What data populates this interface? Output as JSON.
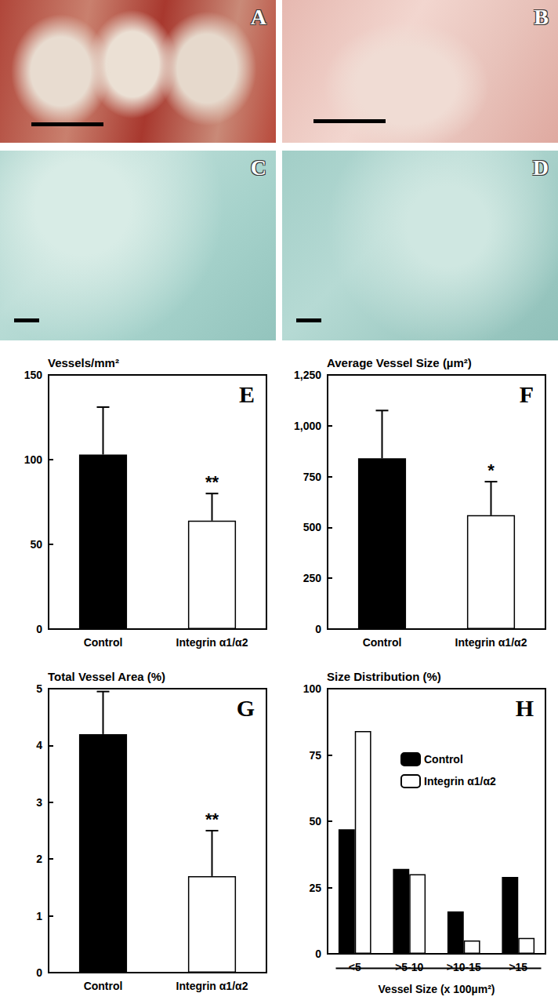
{
  "image_panels": [
    {
      "label": "A"
    },
    {
      "label": "B"
    },
    {
      "label": "C"
    },
    {
      "label": "D"
    }
  ],
  "chart_data": [
    {
      "type": "bar",
      "panel": "E",
      "title": "Vessels/mm²",
      "categories": [
        "Control",
        "Integrin α1/α2"
      ],
      "values": [
        103,
        64
      ],
      "errors": [
        28,
        16
      ],
      "significance": [
        null,
        "**"
      ],
      "colors": [
        "#000000",
        "#ffffff"
      ],
      "ylim": [
        0,
        150
      ],
      "yticks": [
        0,
        50,
        100,
        150
      ],
      "grid": false
    },
    {
      "type": "bar",
      "panel": "F",
      "title": "Average Vessel Size (µm²)",
      "categories": [
        "Control",
        "Integrin α1/α2"
      ],
      "values": [
        840,
        560
      ],
      "errors": [
        235,
        165
      ],
      "significance": [
        null,
        "*"
      ],
      "colors": [
        "#000000",
        "#ffffff"
      ],
      "ylim": [
        0,
        1250
      ],
      "yticks": [
        0,
        250,
        500,
        750,
        1000,
        1250
      ],
      "grid": false
    },
    {
      "type": "bar",
      "panel": "G",
      "title": "Total Vessel Area (%)",
      "categories": [
        "Control",
        "Integrin α1/α2"
      ],
      "values": [
        4.2,
        1.7
      ],
      "errors": [
        0.75,
        0.8
      ],
      "significance": [
        null,
        "**"
      ],
      "colors": [
        "#000000",
        "#ffffff"
      ],
      "ylim": [
        0,
        5
      ],
      "yticks": [
        0,
        1,
        2,
        3,
        4,
        5
      ],
      "grid": false
    },
    {
      "type": "bar",
      "panel": "H",
      "title": "Size Distribution (%)",
      "xlabel": "Vessel Size (x 100µm²)",
      "categories": [
        "<5",
        ">5-10",
        ">10-15",
        ">15"
      ],
      "series": [
        {
          "name": "Control",
          "color": "#000000",
          "values": [
            47,
            32,
            16,
            29
          ]
        },
        {
          "name": "Integrin α1/α2",
          "color": "#ffffff",
          "values": [
            84,
            30,
            5,
            6
          ]
        }
      ],
      "legend": "upper right",
      "ylim": [
        0,
        100
      ],
      "yticks": [
        0,
        25,
        50,
        75,
        100
      ],
      "grid": false
    }
  ]
}
